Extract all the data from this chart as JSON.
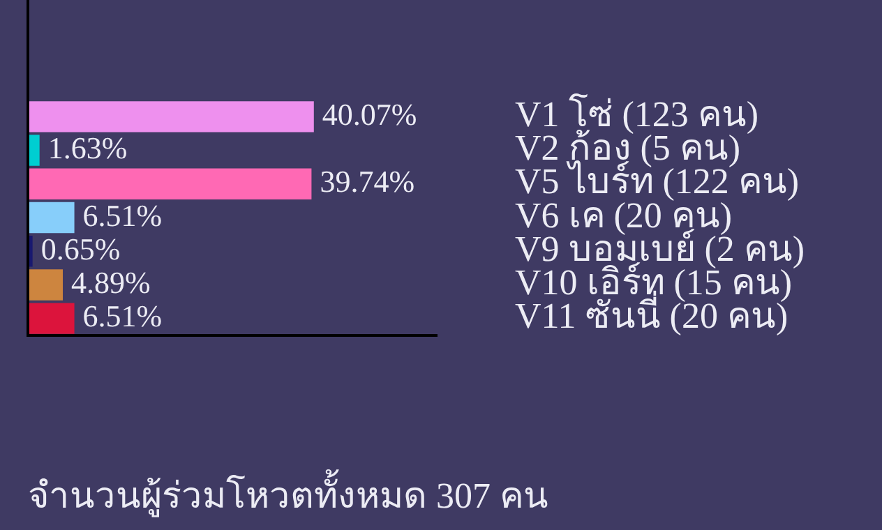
{
  "chart_data": {
    "type": "bar",
    "orientation": "horizontal",
    "categories": [
      "V1 โซ่ (123 คน)",
      "V2 ก้อง (5 คน)",
      "V5 ไบร์ท (122 คน)",
      "V6 เค (20 คน)",
      "V9 บอมเบย์ (2 คน)",
      "V10 เอิร์ท (15 คน)",
      "V11 ซันนี่ (20 คน)"
    ],
    "values": [
      40.07,
      1.63,
      39.74,
      6.51,
      0.65,
      4.89,
      6.51
    ],
    "colors": [
      "#ee90ee",
      "#00ced1",
      "#ff69b4",
      "#87cefa",
      "#191970",
      "#cd853f",
      "#dc143c"
    ],
    "value_labels": [
      "40.07%",
      "1.63%",
      "39.74%",
      "6.51%",
      "0.65%",
      "4.89%",
      "6.51%"
    ],
    "xlim": [
      0,
      57.3
    ],
    "tick_labels": "y",
    "grid": false,
    "legend": false,
    "annotations": [
      "จำนวนผู้ร่วมโหวตทั้งหมด 307 คน"
    ]
  }
}
